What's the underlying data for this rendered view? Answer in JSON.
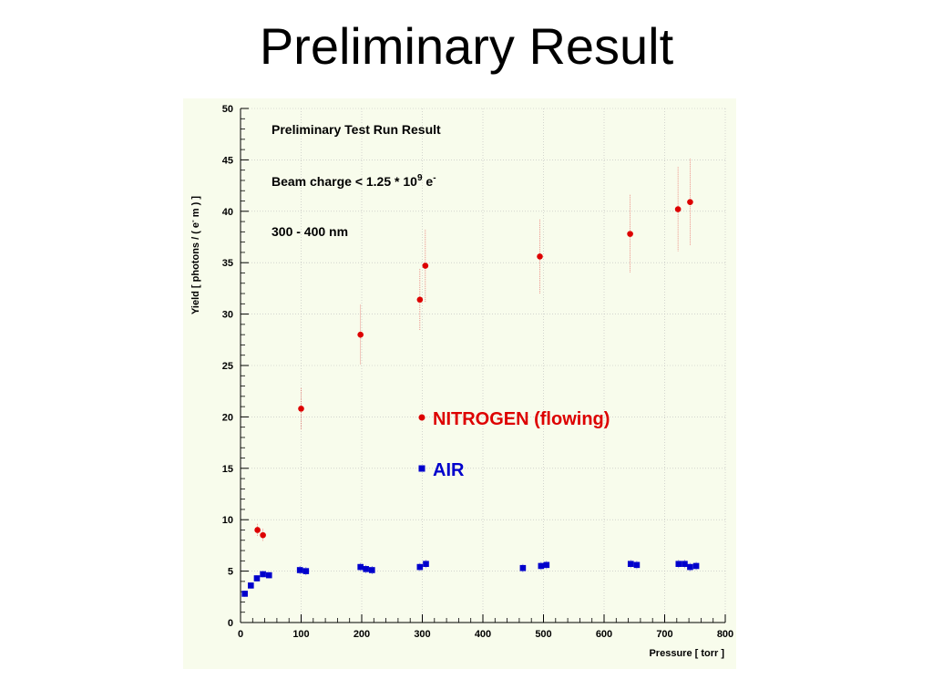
{
  "slide": {
    "title": "Preliminary Result"
  },
  "chart_data": {
    "type": "scatter",
    "title": "",
    "xlabel": "Pressure [ torr ]",
    "ylabel_parts": {
      "pre": "Yield [ photons / ( e",
      "sup": "-",
      "post": " m ) ]"
    },
    "xlim": [
      0,
      800
    ],
    "ylim": [
      0,
      50
    ],
    "xticks": [
      0,
      100,
      200,
      300,
      400,
      500,
      600,
      700,
      800
    ],
    "yticks": [
      0,
      5,
      10,
      15,
      20,
      25,
      30,
      35,
      40,
      45,
      50
    ],
    "grid": true,
    "annotations": {
      "line1": "Preliminary Test Run Result",
      "line2_pre": "Beam charge < 1.25 * 10",
      "line2_exp": "9",
      "line2_post": " e",
      "line2_sup": "-",
      "line3": "300 - 400 nm"
    },
    "legend_position": "center",
    "series": [
      {
        "name": "NITROGEN (flowing)",
        "color": "#dd0000",
        "marker": "circle",
        "points": [
          {
            "x": 28,
            "y": 9.0,
            "err": 0.6
          },
          {
            "x": 37,
            "y": 8.5,
            "err": 0.6
          },
          {
            "x": 100,
            "y": 20.8,
            "err": 2.0
          },
          {
            "x": 198,
            "y": 28.0,
            "err": 2.9
          },
          {
            "x": 296,
            "y": 31.4,
            "err": 3.0
          },
          {
            "x": 305,
            "y": 34.7,
            "err": 3.5
          },
          {
            "x": 494,
            "y": 35.6,
            "err": 3.6
          },
          {
            "x": 643,
            "y": 37.8,
            "err": 3.8
          },
          {
            "x": 722,
            "y": 40.2,
            "err": 4.1
          },
          {
            "x": 742,
            "y": 40.9,
            "err": 4.2
          }
        ]
      },
      {
        "name": "AIR",
        "color": "#0000cc",
        "marker": "square",
        "points": [
          {
            "x": 7,
            "y": 2.8,
            "err": 0.3
          },
          {
            "x": 17,
            "y": 3.6,
            "err": 0.3
          },
          {
            "x": 27,
            "y": 4.3,
            "err": 0.3
          },
          {
            "x": 37,
            "y": 4.7,
            "err": 0.3
          },
          {
            "x": 47,
            "y": 4.6,
            "err": 0.3
          },
          {
            "x": 98,
            "y": 5.1,
            "err": 0.4
          },
          {
            "x": 108,
            "y": 5.0,
            "err": 0.4
          },
          {
            "x": 198,
            "y": 5.4,
            "err": 0.4
          },
          {
            "x": 207,
            "y": 5.2,
            "err": 0.4
          },
          {
            "x": 217,
            "y": 5.1,
            "err": 0.4
          },
          {
            "x": 296,
            "y": 5.4,
            "err": 0.4
          },
          {
            "x": 306,
            "y": 5.7,
            "err": 0.4
          },
          {
            "x": 466,
            "y": 5.3,
            "err": 0.4
          },
          {
            "x": 496,
            "y": 5.5,
            "err": 0.4
          },
          {
            "x": 505,
            "y": 5.6,
            "err": 0.4
          },
          {
            "x": 644,
            "y": 5.7,
            "err": 0.4
          },
          {
            "x": 654,
            "y": 5.6,
            "err": 0.4
          },
          {
            "x": 723,
            "y": 5.7,
            "err": 0.4
          },
          {
            "x": 733,
            "y": 5.7,
            "err": 0.4
          },
          {
            "x": 742,
            "y": 5.4,
            "err": 0.4
          },
          {
            "x": 752,
            "y": 5.5,
            "err": 0.4
          }
        ]
      }
    ]
  }
}
